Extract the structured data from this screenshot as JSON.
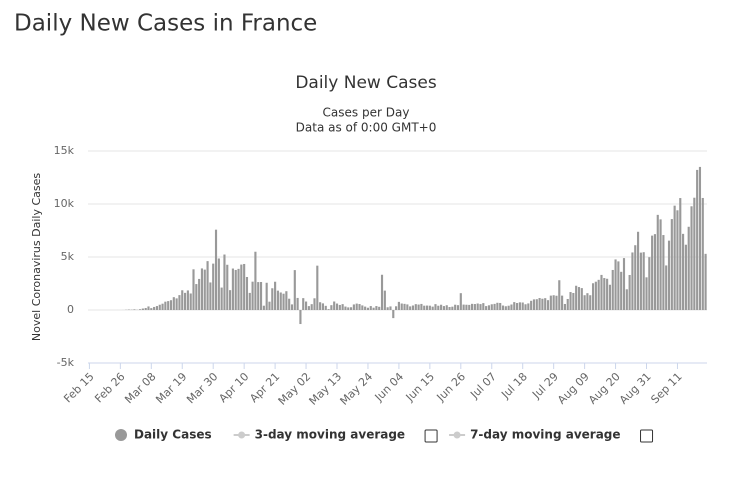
{
  "page_title": "Daily New Cases in France",
  "chart_data": {
    "type": "bar",
    "title": "Daily New Cases",
    "subtitle": "Cases per Day",
    "note": "Data as of 0:00 GMT+0",
    "y_label": "Novel Coronavirus Daily Cases",
    "ylim": [
      -5000,
      15000
    ],
    "yticks": [
      {
        "value": -5000,
        "label": "-5k"
      },
      0,
      {
        "value": 5000,
        "label": "5k"
      },
      {
        "value": 10000,
        "label": "10k"
      },
      {
        "value": 15000,
        "label": "15k"
      }
    ],
    "grid": true,
    "categories": [
      "Feb 15",
      null,
      null,
      null,
      null,
      null,
      null,
      null,
      null,
      null,
      null,
      "Feb 26",
      null,
      null,
      null,
      null,
      null,
      null,
      null,
      null,
      null,
      null,
      "Mar 08",
      null,
      null,
      null,
      null,
      null,
      null,
      null,
      null,
      null,
      null,
      "Mar 19",
      null,
      null,
      null,
      null,
      null,
      null,
      null,
      null,
      null,
      null,
      "Mar 30",
      null,
      null,
      null,
      null,
      null,
      null,
      null,
      null,
      null,
      null,
      "Apr 10",
      null,
      null,
      null,
      null,
      null,
      null,
      null,
      null,
      null,
      null,
      "Apr 21",
      null,
      null,
      null,
      null,
      null,
      null,
      null,
      null,
      null,
      null,
      "May 02",
      null,
      null,
      null,
      null,
      null,
      null,
      null,
      null,
      null,
      null,
      "May 13",
      null,
      null,
      null,
      null,
      null,
      null,
      null,
      null,
      null,
      null,
      "May 24",
      null,
      null,
      null,
      null,
      null,
      null,
      null,
      null,
      null,
      null,
      "Jun 04",
      null,
      null,
      null,
      null,
      null,
      null,
      null,
      null,
      null,
      null,
      "Jun 15",
      null,
      null,
      null,
      null,
      null,
      null,
      null,
      null,
      null,
      null,
      "Jun 26",
      null,
      null,
      null,
      null,
      null,
      null,
      null,
      null,
      null,
      null,
      "Jul 07",
      null,
      null,
      null,
      null,
      null,
      null,
      null,
      null,
      null,
      null,
      "Jul 18",
      null,
      null,
      null,
      null,
      null,
      null,
      null,
      null,
      null,
      null,
      "Jul 29",
      null,
      null,
      null,
      null,
      null,
      null,
      null,
      null,
      null,
      null,
      "Aug 09",
      null,
      null,
      null,
      null,
      null,
      null,
      null,
      null,
      null,
      null,
      "Aug 20",
      null,
      null,
      null,
      null,
      null,
      null,
      null,
      null,
      null,
      null,
      "Aug 31",
      null,
      null,
      null,
      null,
      null,
      null,
      null,
      null,
      null,
      null,
      "Sep 11",
      null,
      null,
      null,
      null,
      null,
      null,
      null,
      null,
      null,
      null
    ],
    "series": [
      {
        "name": "Daily Cases",
        "color": "#999999",
        "values": [
          0,
          0,
          0,
          0,
          0,
          0,
          0,
          0,
          0,
          0,
          2,
          1,
          4,
          20,
          43,
          30,
          61,
          21,
          73,
          138,
          190,
          336,
          177,
          286,
          372,
          497,
          595,
          785,
          838,
          924,
          1210,
          1097,
          1404,
          1861,
          1617,
          1847,
          1559,
          3838,
          2446,
          2931,
          3922,
          3809,
          4611,
          2599,
          4376,
          7578,
          4861,
          2116,
          5233,
          4267,
          1873,
          3912,
          3777,
          3881,
          4286,
          4342,
          3114,
          1613,
          2673,
          5497,
          2633,
          2641,
          405,
          2569,
          785,
          2051,
          2667,
          1827,
          1653,
          1537,
          1773,
          1065,
          528,
          3764,
          1139,
          -1324,
          1120,
          799,
          368,
          551,
          1104,
          4183,
          734,
          625,
          393,
          83,
          456,
          802,
          609,
          476,
          554,
          325,
          246,
          259,
          524,
          604,
          563,
          433,
          320,
          213,
          371,
          215,
          373,
          300,
          3325,
          1828,
          257,
          338,
          -766,
          351,
          767,
          611,
          579,
          526,
          341,
          424,
          552,
          514,
          572,
          407,
          418,
          407,
          318,
          554,
          402,
          497,
          370,
          450,
          283,
          314,
          499,
          455,
          1588,
          509,
          497,
          483,
          581,
          562,
          611,
          557,
          649,
          369,
          443,
          539,
          577,
          681,
          663,
          421,
          352,
          404,
          519,
          745,
          659,
          722,
          707,
          541,
          621,
          868,
          1001,
          1018,
          1130,
          1063,
          1116,
          927,
          1356,
          1394,
          1346,
          2808,
          1357,
          569,
          1039,
          1695,
          1604,
          2288,
          2166,
          2066,
          1393,
          1587,
          1393,
          2524,
          2669,
          2846,
          3310,
          3015,
          2946,
          2382,
          3776,
          4771,
          4586,
          3602,
          4897,
          1955,
          3304,
          5429,
          6111,
          7379,
          5413,
          5453,
          3082,
          4982,
          7017,
          7157,
          8975,
          8550,
          7071,
          4203,
          6544,
          8577,
          9843,
          9406,
          10561,
          7183,
          6158,
          7852,
          9784,
          10593,
          13215,
          13498,
          10569,
          5298
        ]
      }
    ],
    "hidden_series": [
      "3-day moving average",
      "7-day moving average"
    ]
  }
}
